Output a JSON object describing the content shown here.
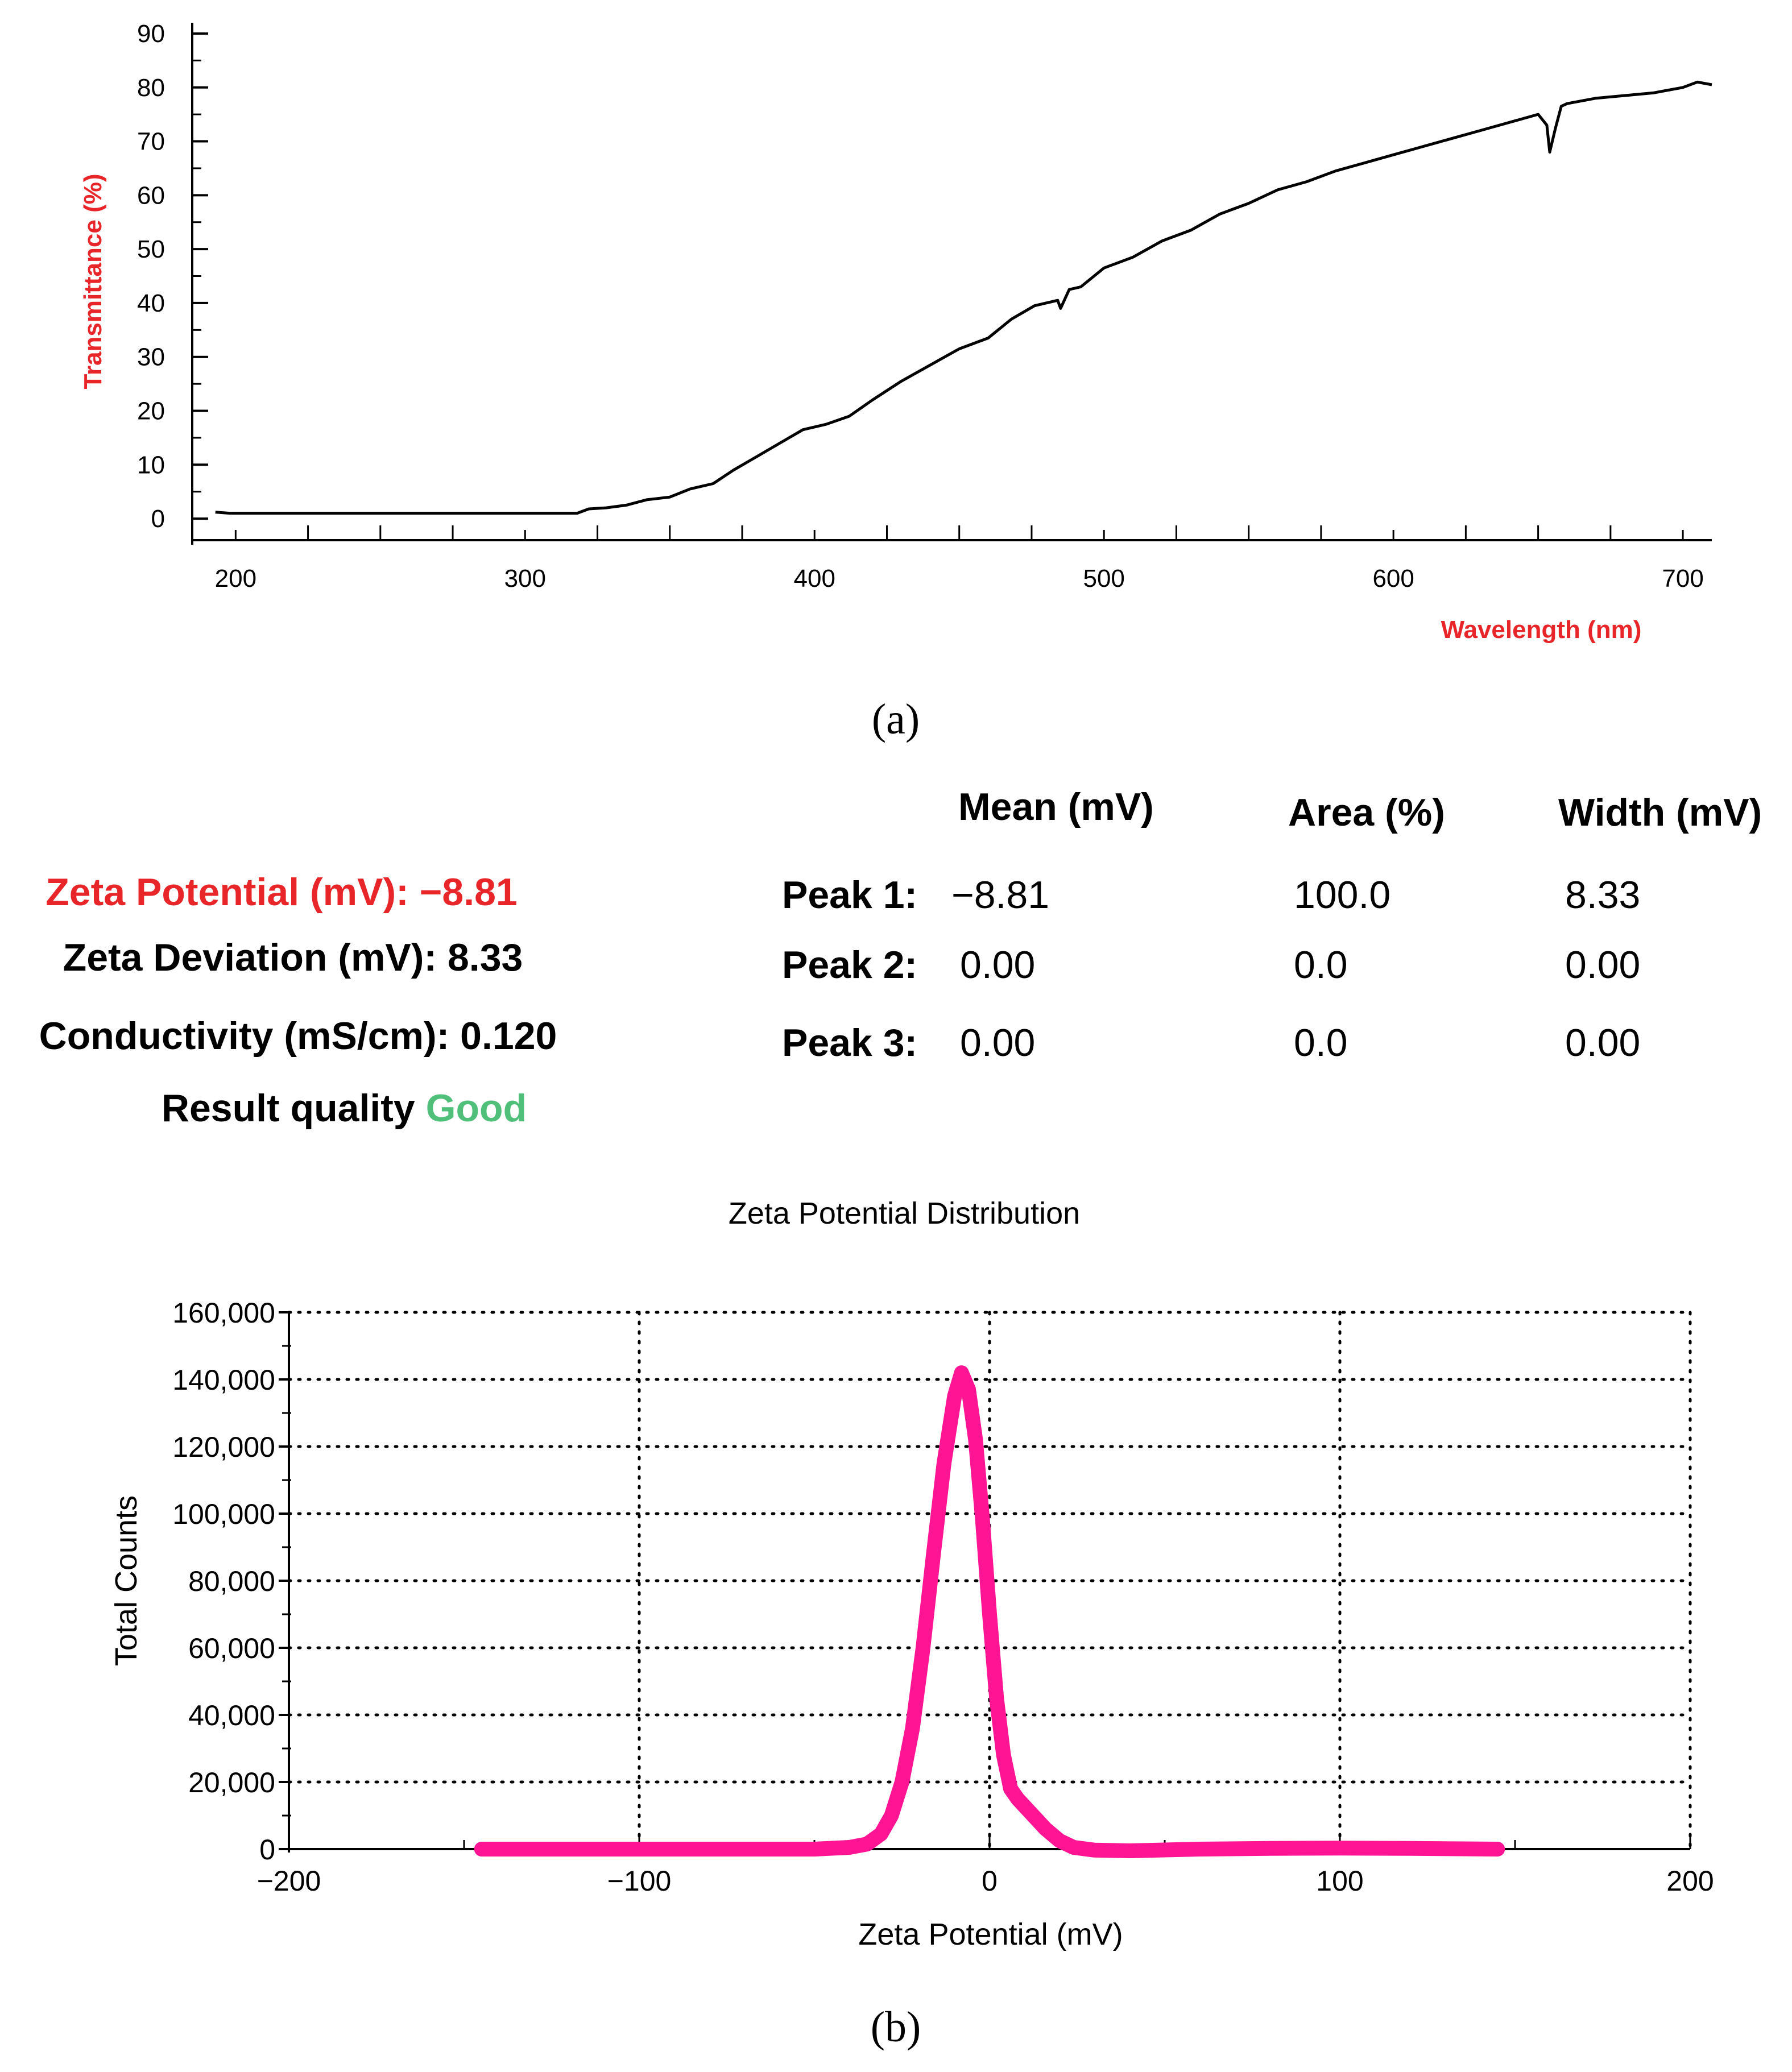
{
  "panel_a": {
    "label": "(a)",
    "chart_data": {
      "type": "line",
      "title": "",
      "xlabel": "Wavelength (nm)",
      "ylabel": "Transmittance (%)",
      "xlim": [
        185,
        710
      ],
      "ylim": [
        -4,
        92
      ],
      "xticks": [
        200,
        300,
        400,
        500,
        600,
        700
      ],
      "yticks": [
        0,
        10,
        20,
        30,
        40,
        50,
        60,
        70,
        80,
        90
      ],
      "grid": false,
      "label_color": "#e8262a",
      "line_color": "#000000",
      "series": [
        {
          "name": "Transmittance",
          "x": [
            193,
            198,
            220,
            260,
            300,
            318,
            322,
            328,
            335,
            342,
            350,
            357,
            365,
            372,
            380,
            388,
            396,
            404,
            412,
            420,
            430,
            440,
            450,
            460,
            468,
            476,
            484,
            485,
            488,
            492,
            500,
            510,
            520,
            530,
            540,
            550,
            560,
            570,
            580,
            590,
            600,
            610,
            620,
            630,
            640,
            650,
            653,
            654,
            656,
            658,
            660,
            665,
            670,
            680,
            690,
            700,
            705,
            710
          ],
          "y": [
            1.2,
            1.0,
            1.0,
            1.0,
            1.0,
            1.0,
            1.8,
            2.0,
            2.5,
            3.5,
            4.0,
            5.5,
            6.5,
            9.0,
            11.5,
            14.0,
            16.5,
            17.5,
            19.0,
            22.0,
            25.5,
            28.5,
            31.5,
            33.5,
            37.0,
            39.5,
            40.5,
            39.0,
            42.5,
            43.0,
            46.5,
            48.5,
            51.5,
            53.5,
            56.5,
            58.5,
            61.0,
            62.5,
            64.5,
            66.0,
            67.5,
            69.0,
            70.5,
            72.0,
            73.5,
            75.0,
            73.0,
            68.0,
            72.5,
            76.5,
            77.0,
            77.5,
            78.0,
            78.5,
            79.0,
            80.0,
            81.0,
            80.5
          ]
        }
      ]
    }
  },
  "results": {
    "zeta_potential_label": "Zeta Potential (mV):",
    "zeta_potential_value": "−8.81",
    "zeta_deviation_label": "Zeta Deviation (mV):",
    "zeta_deviation_value": "8.33",
    "conductivity_label": "Conductivity (mS/cm):",
    "conductivity_value": "0.120",
    "quality_label": "Result quality",
    "quality_value": "Good",
    "colors": {
      "zeta_potential": "#e8262a",
      "quality_good": "#4fbf7a"
    },
    "peak_table": {
      "headers": [
        "Mean (mV)",
        "Area (%)",
        "Width (mV)"
      ],
      "rows": [
        {
          "label": "Peak 1:",
          "mean": "−8.81",
          "area": "100.0",
          "width": "8.33"
        },
        {
          "label": "Peak 2:",
          "mean": "0.00",
          "area": "0.0",
          "width": "0.00"
        },
        {
          "label": "Peak 3:",
          "mean": "0.00",
          "area": "0.0",
          "width": "0.00"
        }
      ]
    }
  },
  "panel_b": {
    "label": "(b)",
    "chart_data": {
      "type": "line",
      "title": "Zeta Potential Distribution",
      "xlabel": "Zeta Potential (mV)",
      "ylabel": "Total Counts",
      "xlim": [
        -200,
        200
      ],
      "ylim": [
        0,
        160000
      ],
      "xticks": [
        -200,
        -100,
        0,
        100,
        200
      ],
      "xtick_labels": [
        "−200",
        "−100",
        "0",
        "100",
        "200"
      ],
      "yticks": [
        0,
        20000,
        40000,
        60000,
        80000,
        100000,
        120000,
        140000,
        160000
      ],
      "ytick_labels": [
        "0",
        "20,000",
        "40,000",
        "60,000",
        "80,000",
        "100,000",
        "120,000",
        "140,000",
        "160,000"
      ],
      "grid": true,
      "line_color": "#ff1493",
      "series": [
        {
          "name": "Total Counts",
          "x": [
            -145,
            -100,
            -50,
            -40,
            -35,
            -31,
            -28,
            -25,
            -22,
            -19,
            -16,
            -13,
            -10,
            -8,
            -6,
            -4,
            -2,
            0,
            2,
            4,
            6,
            8,
            12,
            16,
            20,
            24,
            30,
            40,
            60,
            80,
            100,
            120,
            145
          ],
          "y": [
            0,
            0,
            0,
            500,
            1500,
            4500,
            10000,
            20000,
            36000,
            60000,
            88000,
            115000,
            135000,
            142000,
            137000,
            122000,
            98000,
            70000,
            45000,
            28000,
            18000,
            15000,
            10500,
            6000,
            2500,
            500,
            -300,
            -500,
            0,
            200,
            300,
            200,
            0
          ]
        }
      ]
    }
  }
}
